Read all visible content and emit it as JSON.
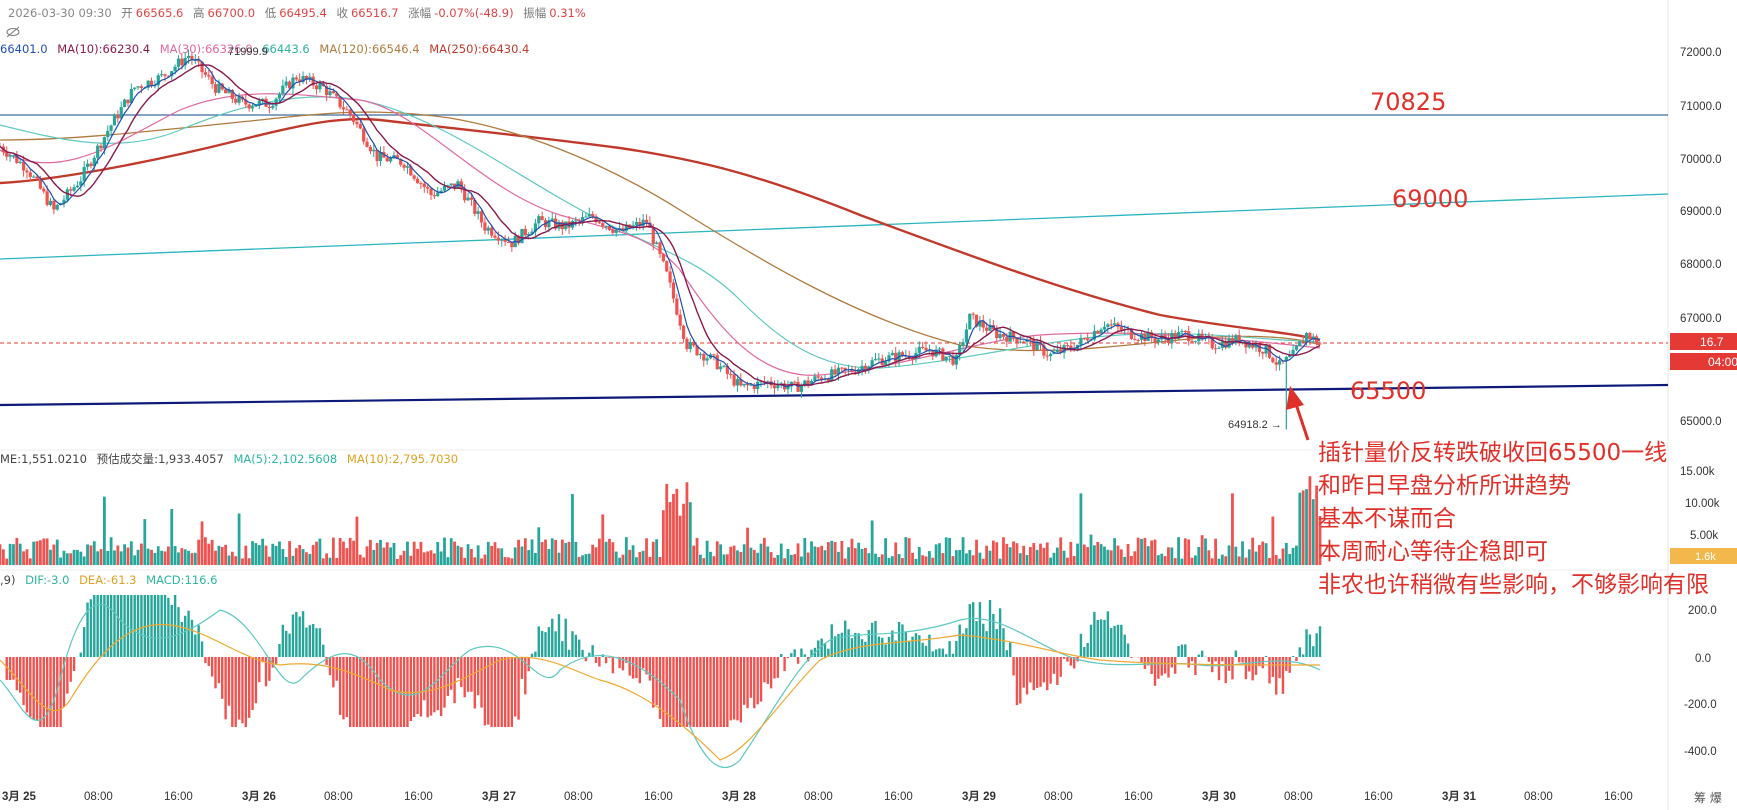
{
  "header": {
    "datetime": "2026-03-30 09:30",
    "open_label": "开",
    "open": "66565.6",
    "high_label": "高",
    "high": "66700.0",
    "low_label": "低",
    "low": "66495.4",
    "close_label": "收",
    "close": "66516.7",
    "change_label": "涨幅",
    "change": "-0.07%(-48.9)",
    "amplitude_label": "振幅",
    "amplitude": "0.31%"
  },
  "ma_legend": {
    "ma5": "66401.0",
    "ma10": "MA(10):66230.4",
    "ma30": "MA(30):66326.0",
    "ma60": "66443.6",
    "ma120": "MA(120):66546.4",
    "ma250": "MA(250):66430.4"
  },
  "volume_legend": {
    "vol": "ME:1,551.0210",
    "est": "预估成交量:1,933.4057",
    "ma5": "MA(5):2,102.5608",
    "ma10": "MA(10):2,795.7030"
  },
  "macd_legend": {
    "params": ",9)",
    "dif": "DIF:-3.0",
    "dea": "DEA:-61.3",
    "macd": "MACD:116.6"
  },
  "price_axis": [
    "72000.0",
    "71000.0",
    "70000.0",
    "69000.0",
    "68000.0",
    "67000.0",
    "65000.0"
  ],
  "current_price": "66516.7",
  "countdown": "04:00",
  "volume_axis": [
    "15.00k",
    "10.00k",
    "5.00k"
  ],
  "volume_current": "1.6k",
  "macd_axis": [
    "200.0",
    "0.0",
    "-200.0",
    "-400.0"
  ],
  "time_axis": [
    "3月 25",
    "08:00",
    "16:00",
    "3月 26",
    "08:00",
    "16:00",
    "3月 27",
    "08:00",
    "16:00",
    "3月 28",
    "08:00",
    "16:00",
    "3月 29",
    "08:00",
    "16:00",
    "3月 30",
    "08:00",
    "16:00",
    "3月 31",
    "08:00",
    "16:00"
  ],
  "axis_corner": "筹 爆",
  "chart_annotations": {
    "high_marker": "71999.9",
    "low_marker": "64918.2 →",
    "level_top": "70825",
    "level_mid": "69000",
    "level_low": "65500"
  },
  "commentary": [
    "插针量价反转跌破收回65500一线",
    "和昨日早盘分析所讲趋势",
    "基本不谋而合",
    "本周耐心等待企稳即可",
    "非农也许稍微有些影响，不够影响有限"
  ],
  "colors": {
    "up": "#26a69a",
    "down": "#ef5350",
    "annotation": "#e0302a",
    "support_line": "#0d1a7a",
    "trend_line": "#2cb5c0",
    "level_line": "#3b6e9e",
    "ma250": "#c0392b",
    "ma120": "#b07a3c"
  },
  "chart_data": {
    "type": "line",
    "title": "",
    "ylim": [
      64800,
      72300
    ],
    "price_path": [
      {
        "t": 0,
        "p": 70200
      },
      {
        "t": 4,
        "p": 69800
      },
      {
        "t": 8,
        "p": 69000
      },
      {
        "t": 12,
        "p": 69600
      },
      {
        "t": 16,
        "p": 70500
      },
      {
        "t": 20,
        "p": 71300
      },
      {
        "t": 24,
        "p": 71500
      },
      {
        "t": 28,
        "p": 71900
      },
      {
        "t": 32,
        "p": 71300
      },
      {
        "t": 36,
        "p": 71000
      },
      {
        "t": 40,
        "p": 71000
      },
      {
        "t": 44,
        "p": 71500
      },
      {
        "t": 48,
        "p": 71300
      },
      {
        "t": 52,
        "p": 70800
      },
      {
        "t": 56,
        "p": 70000
      },
      {
        "t": 60,
        "p": 69900
      },
      {
        "t": 64,
        "p": 69300
      },
      {
        "t": 68,
        "p": 69500
      },
      {
        "t": 72,
        "p": 68700
      },
      {
        "t": 76,
        "p": 68400
      },
      {
        "t": 80,
        "p": 68800
      },
      {
        "t": 84,
        "p": 68700
      },
      {
        "t": 88,
        "p": 68900
      },
      {
        "t": 92,
        "p": 68600
      },
      {
        "t": 96,
        "p": 68800
      },
      {
        "t": 99,
        "p": 67800
      },
      {
        "t": 102,
        "p": 66500
      },
      {
        "t": 106,
        "p": 66200
      },
      {
        "t": 110,
        "p": 65700
      },
      {
        "t": 114,
        "p": 65800
      },
      {
        "t": 118,
        "p": 65700
      },
      {
        "t": 122,
        "p": 65900
      },
      {
        "t": 126,
        "p": 66000
      },
      {
        "t": 130,
        "p": 66200
      },
      {
        "t": 134,
        "p": 66300
      },
      {
        "t": 138,
        "p": 66400
      },
      {
        "t": 142,
        "p": 66200
      },
      {
        "t": 144,
        "p": 67000
      },
      {
        "t": 148,
        "p": 66700
      },
      {
        "t": 152,
        "p": 66600
      },
      {
        "t": 156,
        "p": 66300
      },
      {
        "t": 160,
        "p": 66500
      },
      {
        "t": 164,
        "p": 66900
      },
      {
        "t": 168,
        "p": 66700
      },
      {
        "t": 172,
        "p": 66600
      },
      {
        "t": 176,
        "p": 66700
      },
      {
        "t": 180,
        "p": 66500
      },
      {
        "t": 184,
        "p": 66600
      },
      {
        "t": 188,
        "p": 66400
      },
      {
        "t": 190,
        "p": 66100
      },
      {
        "t": 192,
        "p": 66300
      },
      {
        "t": 194,
        "p": 66700
      },
      {
        "t": 196,
        "p": 66517
      }
    ],
    "horizontal_levels": [
      70825,
      65500
    ],
    "current_price": 66516.7,
    "low_marker": 64918.2,
    "high_marker": 71999.9
  }
}
